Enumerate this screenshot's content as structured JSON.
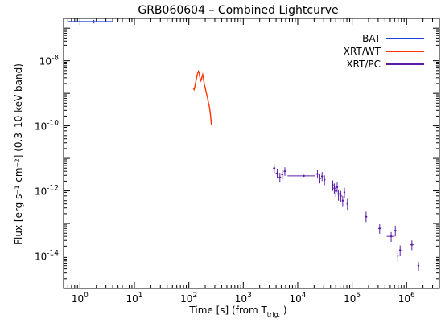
{
  "chart_data": {
    "type": "scatter",
    "title": "GRB060604 – Combined Lightcurve",
    "xlabel": "Time [s]  (from T",
    "xlabel_sub": "trig.",
    "xlabel_end": " )",
    "ylabel": "Flux [erg s⁻¹ cm⁻²] (0.3–10 keV band)",
    "xscale": "log",
    "yscale": "log",
    "xlim": [
      0.5,
      4000000
    ],
    "ylim": [
      1e-15,
      2e-07
    ],
    "xticks": [
      1,
      10,
      100,
      1000,
      10000,
      100000,
      1000000
    ],
    "yticks": [
      1e-08,
      1e-10,
      1e-12,
      1e-14
    ],
    "legend_position": "top-right",
    "grid": false,
    "series": [
      {
        "name": "BAT",
        "color": "#1f3fd6",
        "points": [
          {
            "x": 1.8,
            "y": 1.6e-07,
            "xlo": 0.6,
            "xhi": 4.0,
            "ylo": 1.4e-07,
            "yhi": 1.8e-07
          }
        ]
      },
      {
        "name": "XRT/WT",
        "color": "#ff3300",
        "line": [
          [
            120,
            1.5e-09
          ],
          [
            125,
            1.3e-09
          ],
          [
            130,
            1.7e-09
          ],
          [
            135,
            2.4e-09
          ],
          [
            140,
            3.3e-09
          ],
          [
            145,
            4.2e-09
          ],
          [
            150,
            4.8e-09
          ],
          [
            155,
            4.3e-09
          ],
          [
            160,
            3e-09
          ],
          [
            165,
            2.4e-09
          ],
          [
            170,
            2.6e-09
          ],
          [
            175,
            3.3e-09
          ],
          [
            180,
            3.8e-09
          ],
          [
            185,
            3.1e-09
          ],
          [
            190,
            2.2e-09
          ],
          [
            195,
            1.7e-09
          ],
          [
            200,
            1.5e-09
          ],
          [
            205,
            1.2e-09
          ],
          [
            210,
            1e-09
          ],
          [
            215,
            8.5e-10
          ],
          [
            220,
            7.5e-10
          ],
          [
            225,
            6e-10
          ],
          [
            230,
            5e-10
          ],
          [
            235,
            4.3e-10
          ],
          [
            240,
            3.5e-10
          ],
          [
            245,
            2.8e-10
          ],
          [
            250,
            2.1e-10
          ],
          [
            255,
            1.5e-10
          ],
          [
            260,
            1.1e-10
          ]
        ]
      },
      {
        "name": "XRT/PC",
        "color": "#5a1ea6",
        "points": [
          {
            "x": 3700,
            "y": 5e-12,
            "xlo": 3500,
            "xhi": 3900,
            "ylo": 3.6e-12,
            "yhi": 6.6e-12
          },
          {
            "x": 4200,
            "y": 3.5e-12,
            "xlo": 3950,
            "xhi": 4450,
            "ylo": 2.4e-12,
            "yhi": 4.8e-12
          },
          {
            "x": 4700,
            "y": 2.6e-12,
            "xlo": 4450,
            "xhi": 4950,
            "ylo": 1.8e-12,
            "yhi": 3.6e-12
          },
          {
            "x": 5200,
            "y": 3.2e-12,
            "xlo": 4950,
            "xhi": 5450,
            "ylo": 2.3e-12,
            "yhi": 4.4e-12
          },
          {
            "x": 5800,
            "y": 4e-12,
            "xlo": 5500,
            "xhi": 6100,
            "ylo": 2.9e-12,
            "yhi": 5.3e-12
          },
          {
            "x": 13000,
            "y": 2.9e-12,
            "xlo": 6500,
            "xhi": 21000,
            "ylo": 2.7e-12,
            "yhi": 3.1e-12
          },
          {
            "x": 23000,
            "y": 3.3e-12,
            "xlo": 21500,
            "xhi": 24500,
            "ylo": 2.4e-12,
            "yhi": 4.4e-12
          },
          {
            "x": 25500,
            "y": 2.4e-12,
            "xlo": 24500,
            "xhi": 26500,
            "ylo": 1.7e-12,
            "yhi": 3.3e-12
          },
          {
            "x": 28000,
            "y": 2.8e-12,
            "xlo": 27000,
            "xhi": 29000,
            "ylo": 2e-12,
            "yhi": 3.8e-12
          },
          {
            "x": 31000,
            "y": 2.2e-12,
            "xlo": 30000,
            "xhi": 32000,
            "ylo": 1.5e-12,
            "yhi": 3e-12
          },
          {
            "x": 44000,
            "y": 1.5e-12,
            "xlo": 42500,
            "xhi": 45500,
            "ylo": 1e-12,
            "yhi": 2.1e-12
          },
          {
            "x": 47000,
            "y": 1.2e-12,
            "xlo": 45500,
            "xhi": 48500,
            "ylo": 8e-13,
            "yhi": 1.7e-12
          },
          {
            "x": 50000,
            "y": 1e-12,
            "xlo": 48500,
            "xhi": 51500,
            "ylo": 6.5e-13,
            "yhi": 1.4e-12
          },
          {
            "x": 53000,
            "y": 1.3e-12,
            "xlo": 51500,
            "xhi": 54500,
            "ylo": 9e-13,
            "yhi": 1.8e-12
          },
          {
            "x": 56000,
            "y": 8e-13,
            "xlo": 54500,
            "xhi": 57500,
            "ylo": 5e-13,
            "yhi": 1.1e-12
          },
          {
            "x": 62000,
            "y": 7e-13,
            "xlo": 60000,
            "xhi": 64000,
            "ylo": 4.5e-13,
            "yhi": 1e-12
          },
          {
            "x": 67000,
            "y": 5e-13,
            "xlo": 65000,
            "xhi": 69000,
            "ylo": 3.2e-13,
            "yhi": 7e-13
          },
          {
            "x": 72000,
            "y": 9e-13,
            "xlo": 70000,
            "xhi": 74000,
            "ylo": 6e-13,
            "yhi": 1.25e-12
          },
          {
            "x": 82000,
            "y": 4e-13,
            "xlo": 79000,
            "xhi": 85000,
            "ylo": 2.6e-13,
            "yhi": 5.7e-13
          },
          {
            "x": 180000,
            "y": 1.6e-13,
            "xlo": 170000,
            "xhi": 190000,
            "ylo": 1.1e-13,
            "yhi": 2.3e-13
          },
          {
            "x": 320000,
            "y": 7e-14,
            "xlo": 300000,
            "xhi": 340000,
            "ylo": 4.8e-14,
            "yhi": 9.5e-14
          },
          {
            "x": 520000,
            "y": 4e-14,
            "xlo": 430000,
            "xhi": 600000,
            "ylo": 2.7e-14,
            "yhi": 5.4e-14
          },
          {
            "x": 620000,
            "y": 6e-14,
            "xlo": 590000,
            "xhi": 650000,
            "ylo": 4e-14,
            "yhi": 8.5e-14
          },
          {
            "x": 690000,
            "y": 1e-14,
            "xlo": 660000,
            "xhi": 720000,
            "ylo": 6.5e-15,
            "yhi": 1.45e-14
          },
          {
            "x": 760000,
            "y": 1.5e-14,
            "xlo": 730000,
            "xhi": 790000,
            "ylo": 1e-14,
            "yhi": 2.1e-14
          },
          {
            "x": 1250000,
            "y": 2.2e-14,
            "xlo": 1150000,
            "xhi": 1350000,
            "ylo": 1.5e-14,
            "yhi": 3e-14
          },
          {
            "x": 1650000,
            "y": 5e-15,
            "xlo": 1600000,
            "xhi": 1700000,
            "ylo": 3.5e-15,
            "yhi": 6.5e-15
          }
        ]
      }
    ]
  }
}
